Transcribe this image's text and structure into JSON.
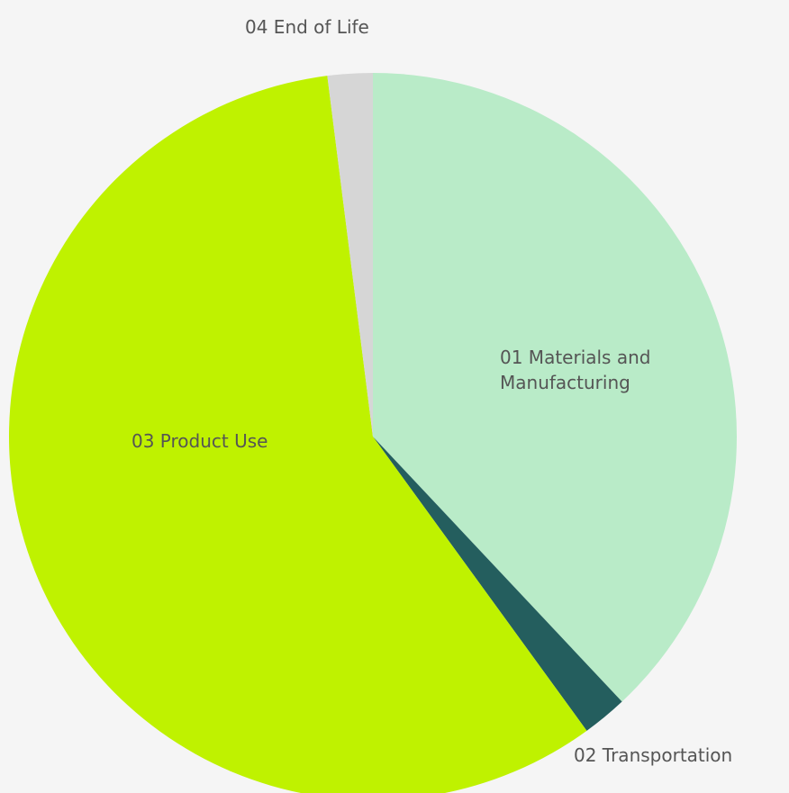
{
  "chart_data": {
    "type": "pie",
    "categories": [
      "01 Materials and Manufacturing",
      "02 Transportation",
      "03 Product Use",
      "04 End of Life"
    ],
    "values": [
      38,
      2,
      58,
      2
    ],
    "colors": [
      "#b9ebc8",
      "#245e5e",
      "#bff200",
      "#d6d6d6"
    ]
  }
}
